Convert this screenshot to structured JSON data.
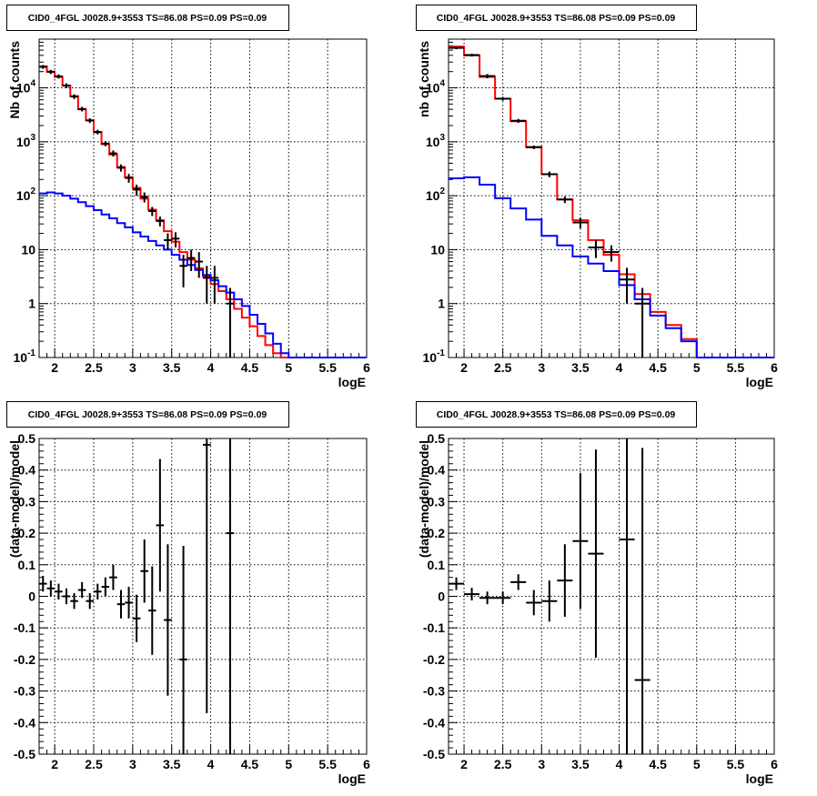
{
  "colors": {
    "data": "#000000",
    "total_model": "#ff0000",
    "component": "#0000ff",
    "grid": "#000000"
  },
  "chart_data": [
    {
      "type": "line",
      "panel": "top-left",
      "title": "CID0_4FGL J0028.9+3553 TS=86.08 PS=0.09 PS=0.09",
      "xlabel": "logE",
      "ylabel": "Nb of counts",
      "xlim": [
        1.8,
        6.0
      ],
      "ylim": [
        0.1,
        80000
      ],
      "log_y": true,
      "grid": true,
      "x_ticks": [
        2,
        2.5,
        3,
        3.5,
        4,
        4.5,
        5,
        5.5,
        6
      ],
      "x_tick_labels": [
        "2",
        "2.5",
        "3",
        "3.5",
        "4",
        "4.5",
        "5",
        "5.5",
        "6"
      ],
      "y_ticks": [
        0.1,
        1,
        10,
        100,
        1000,
        10000
      ],
      "y_tick_labels": [
        "10^-1",
        "1",
        "10",
        "10^2",
        "10^3",
        "10^4"
      ],
      "bin_edges": [
        1.8,
        1.9,
        2.0,
        2.1,
        2.2,
        2.3,
        2.4,
        2.5,
        2.6,
        2.7,
        2.8,
        2.9,
        3.0,
        3.1,
        3.2,
        3.3,
        3.4,
        3.5,
        3.6,
        3.7,
        3.8,
        3.9,
        4.0,
        4.1,
        4.2,
        4.3,
        4.4,
        4.5,
        4.6,
        4.7,
        4.8,
        4.9,
        5.0,
        5.1,
        5.2,
        5.3,
        5.4,
        5.5,
        5.6,
        5.7,
        5.8,
        5.9,
        6.0
      ],
      "series": [
        {
          "name": "",
          "role": "total_model",
          "values": [
            25000,
            20000,
            16000,
            11000,
            7000,
            4000,
            2500,
            1500,
            900,
            580,
            340,
            220,
            140,
            88,
            55,
            35,
            22,
            14,
            9,
            6.5,
            4.5,
            3.2,
            2.3,
            1.7,
            1.2,
            0.8,
            0.55,
            0.38,
            0.25,
            0.17,
            0.12,
            0.1,
            0.1,
            0.1,
            0.1,
            0.1,
            0.1,
            0.1,
            0.1,
            0.1,
            0.1,
            0.1
          ]
        },
        {
          "name": "",
          "role": "component",
          "values": [
            110,
            115,
            110,
            100,
            88,
            76,
            64,
            54,
            45,
            38,
            31,
            26,
            21,
            17.5,
            14.5,
            12,
            10,
            8,
            6.5,
            5.2,
            4.2,
            3.4,
            2.7,
            2.1,
            1.6,
            1.2,
            0.9,
            0.62,
            0.42,
            0.28,
            0.18,
            0.12,
            0.1,
            0.1,
            0.1,
            0.1,
            0.1,
            0.1,
            0.1,
            0.1,
            0.1,
            0.1
          ]
        }
      ],
      "points": [
        {
          "x": 1.85,
          "y": 24500,
          "xerr": 0.05,
          "yerr": 2000
        },
        {
          "x": 1.95,
          "y": 19800,
          "xerr": 0.05,
          "yerr": 1800
        },
        {
          "x": 2.05,
          "y": 16300,
          "xerr": 0.05,
          "yerr": 1500
        },
        {
          "x": 2.15,
          "y": 11000,
          "xerr": 0.05,
          "yerr": 1100
        },
        {
          "x": 2.25,
          "y": 6900,
          "xerr": 0.05,
          "yerr": 700
        },
        {
          "x": 2.35,
          "y": 4050,
          "xerr": 0.05,
          "yerr": 400
        },
        {
          "x": 2.45,
          "y": 2480,
          "xerr": 0.05,
          "yerr": 250
        },
        {
          "x": 2.55,
          "y": 1520,
          "xerr": 0.05,
          "yerr": 150
        },
        {
          "x": 2.65,
          "y": 925,
          "xerr": 0.05,
          "yerr": 100
        },
        {
          "x": 2.75,
          "y": 610,
          "xerr": 0.05,
          "yerr": 80
        },
        {
          "x": 2.85,
          "y": 330,
          "xerr": 0.05,
          "yerr": 50
        },
        {
          "x": 2.95,
          "y": 214,
          "xerr": 0.05,
          "yerr": 40
        },
        {
          "x": 3.05,
          "y": 130,
          "xerr": 0.05,
          "yerr": 30
        },
        {
          "x": 3.15,
          "y": 95,
          "xerr": 0.05,
          "yerr": 20
        },
        {
          "x": 3.25,
          "y": 52,
          "xerr": 0.05,
          "yerr": 10
        },
        {
          "x": 3.35,
          "y": 34,
          "xerr": 0.05,
          "yerr": 7
        },
        {
          "x": 3.45,
          "y": 15,
          "xerr": 0.05,
          "yerr": 5
        },
        {
          "x": 3.55,
          "y": 16,
          "xerr": 0.05,
          "yerr": 5
        },
        {
          "x": 3.65,
          "y": 5,
          "xerr": 0.05,
          "yerr": 3
        },
        {
          "x": 3.75,
          "y": 7,
          "xerr": 0.05,
          "yerr": 3
        },
        {
          "x": 3.85,
          "y": 6,
          "xerr": 0.05,
          "yerr": 3
        },
        {
          "x": 3.95,
          "y": 3,
          "xerr": 0.05,
          "yerr": 2
        },
        {
          "x": 4.05,
          "y": 3,
          "xerr": 0.05,
          "yerr": 2
        },
        {
          "x": 4.25,
          "y": 1,
          "xerr": 0.05,
          "yerr": 0.95
        }
      ]
    },
    {
      "type": "line",
      "panel": "top-right",
      "title": "CID0_4FGL J0028.9+3553 TS=86.08 PS=0.09 PS=0.09",
      "xlabel": "logE",
      "ylabel": "nb of counts",
      "xlim": [
        1.8,
        6.0
      ],
      "ylim": [
        0.1,
        80000
      ],
      "log_y": true,
      "grid": true,
      "x_ticks": [
        2,
        2.5,
        3,
        3.5,
        4,
        4.5,
        5,
        5.5,
        6
      ],
      "x_tick_labels": [
        "2",
        "2.5",
        "3",
        "3.5",
        "4",
        "4.5",
        "5",
        "5.5",
        "6"
      ],
      "y_ticks": [
        0.1,
        1,
        10,
        100,
        1000,
        10000
      ],
      "y_tick_labels": [
        "10^-1",
        "1",
        "10",
        "10^2",
        "10^3",
        "10^4"
      ],
      "bin_edges": [
        1.8,
        2.0,
        2.2,
        2.4,
        2.6,
        2.8,
        3.0,
        3.2,
        3.4,
        3.6,
        3.8,
        4.0,
        4.2,
        4.4,
        4.6,
        4.8,
        5.0,
        5.2,
        5.4,
        5.6,
        5.8,
        6.0
      ],
      "series": [
        {
          "name": "",
          "role": "total_model",
          "values": [
            58000,
            40000,
            16000,
            6300,
            2400,
            800,
            250,
            85,
            35,
            15,
            8,
            3.5,
            1.5,
            0.7,
            0.4,
            0.22,
            0.1,
            0.1,
            0.1,
            0.1,
            0.1
          ]
        },
        {
          "name": "",
          "role": "component",
          "values": [
            210,
            220,
            160,
            90,
            58,
            36,
            18,
            12,
            7.5,
            5.5,
            4,
            2.2,
            1.2,
            0.6,
            0.35,
            0.2,
            0.1,
            0.1,
            0.1,
            0.1,
            0.1
          ]
        }
      ],
      "points": [
        {
          "x": 1.9,
          "y": 55000,
          "xerr": 0.1,
          "yerr": 3000
        },
        {
          "x": 2.1,
          "y": 40500,
          "xerr": 0.1,
          "yerr": 2500
        },
        {
          "x": 2.3,
          "y": 16500,
          "xerr": 0.1,
          "yerr": 1500
        },
        {
          "x": 2.5,
          "y": 6300,
          "xerr": 0.1,
          "yerr": 500
        },
        {
          "x": 2.7,
          "y": 2450,
          "xerr": 0.1,
          "yerr": 200
        },
        {
          "x": 2.9,
          "y": 790,
          "xerr": 0.1,
          "yerr": 60
        },
        {
          "x": 3.1,
          "y": 250,
          "xerr": 0.1,
          "yerr": 30
        },
        {
          "x": 3.3,
          "y": 85,
          "xerr": 0.1,
          "yerr": 12
        },
        {
          "x": 3.5,
          "y": 32,
          "xerr": 0.1,
          "yerr": 7
        },
        {
          "x": 3.7,
          "y": 11,
          "xerr": 0.1,
          "yerr": 4
        },
        {
          "x": 3.9,
          "y": 9,
          "xerr": 0.1,
          "yerr": 3
        },
        {
          "x": 4.1,
          "y": 2.8,
          "xerr": 0.1,
          "yerr": 1.8
        },
        {
          "x": 4.3,
          "y": 1,
          "xerr": 0.1,
          "yerr": 0.95
        }
      ]
    },
    {
      "type": "scatter",
      "panel": "bottom-left",
      "title": "CID0_4FGL J0028.9+3553 TS=86.08 PS=0.09 PS=0.09",
      "xlabel": "logE",
      "ylabel": "(data-model)/model",
      "xlim": [
        1.8,
        6.0
      ],
      "ylim": [
        -0.5,
        0.5
      ],
      "log_y": false,
      "grid": true,
      "x_ticks": [
        2,
        2.5,
        3,
        3.5,
        4,
        4.5,
        5,
        5.5,
        6
      ],
      "x_tick_labels": [
        "2",
        "2.5",
        "3",
        "3.5",
        "4",
        "4.5",
        "5",
        "5.5",
        "6"
      ],
      "y_ticks": [
        -0.5,
        -0.4,
        -0.3,
        -0.2,
        -0.1,
        0,
        0.1,
        0.2,
        0.3,
        0.4,
        0.5
      ],
      "y_tick_labels": [
        "-0.5",
        "-0.4",
        "-0.3",
        "-0.2",
        "-0.1",
        "0",
        "0.1",
        "0.2",
        "0.3",
        "0.4",
        "0.5"
      ],
      "points": [
        {
          "x": 1.85,
          "y": 0.04,
          "xerr": 0.05,
          "yerr": 0.025
        },
        {
          "x": 1.95,
          "y": 0.025,
          "xerr": 0.05,
          "yerr": 0.025
        },
        {
          "x": 2.05,
          "y": 0.015,
          "xerr": 0.05,
          "yerr": 0.025
        },
        {
          "x": 2.15,
          "y": 0.0,
          "xerr": 0.05,
          "yerr": 0.025
        },
        {
          "x": 2.25,
          "y": -0.015,
          "xerr": 0.05,
          "yerr": 0.025
        },
        {
          "x": 2.35,
          "y": 0.02,
          "xerr": 0.05,
          "yerr": 0.025
        },
        {
          "x": 2.45,
          "y": -0.015,
          "xerr": 0.05,
          "yerr": 0.025
        },
        {
          "x": 2.55,
          "y": 0.015,
          "xerr": 0.05,
          "yerr": 0.025
        },
        {
          "x": 2.65,
          "y": 0.03,
          "xerr": 0.05,
          "yerr": 0.03
        },
        {
          "x": 2.75,
          "y": 0.06,
          "xerr": 0.05,
          "yerr": 0.04
        },
        {
          "x": 2.85,
          "y": -0.025,
          "xerr": 0.05,
          "yerr": 0.045
        },
        {
          "x": 2.95,
          "y": -0.02,
          "xerr": 0.05,
          "yerr": 0.05
        },
        {
          "x": 3.05,
          "y": -0.07,
          "xerr": 0.05,
          "yerr": 0.075
        },
        {
          "x": 3.15,
          "y": 0.08,
          "xerr": 0.05,
          "yerr": 0.1
        },
        {
          "x": 3.25,
          "y": -0.045,
          "xerr": 0.05,
          "yerr": 0.14
        },
        {
          "x": 3.35,
          "y": 0.225,
          "xerr": 0.05,
          "yerr": 0.21
        },
        {
          "x": 3.45,
          "y": -0.075,
          "xerr": 0.05,
          "yerr": 0.24
        },
        {
          "x": 3.65,
          "y": -0.2,
          "xerr": 0.05,
          "yerr": 0.36
        },
        {
          "x": 3.95,
          "y": 0.48,
          "xerr": 0.05,
          "yerr": 0.85
        },
        {
          "x": 4.25,
          "y": 0.2,
          "xerr": 0.05,
          "yerr": 1.0
        }
      ]
    },
    {
      "type": "scatter",
      "panel": "bottom-right",
      "title": "CID0_4FGL J0028.9+3553 TS=86.08 PS=0.09 PS=0.09",
      "xlabel": "logE",
      "ylabel": "(data-model)/model",
      "xlim": [
        1.8,
        6.0
      ],
      "ylim": [
        -0.5,
        0.5
      ],
      "log_y": false,
      "grid": true,
      "x_ticks": [
        2,
        2.5,
        3,
        3.5,
        4,
        4.5,
        5,
        5.5,
        6
      ],
      "x_tick_labels": [
        "2",
        "2.5",
        "3",
        "3.5",
        "4",
        "4.5",
        "5",
        "5.5",
        "6"
      ],
      "y_ticks": [
        -0.5,
        -0.4,
        -0.3,
        -0.2,
        -0.1,
        0,
        0.1,
        0.2,
        0.3,
        0.4,
        0.5
      ],
      "y_tick_labels": [
        "-0.5",
        "-0.4",
        "-0.3",
        "-0.2",
        "-0.1",
        "0",
        "0.1",
        "0.2",
        "0.3",
        "0.4",
        "0.5"
      ],
      "points": [
        {
          "x": 1.9,
          "y": 0.04,
          "xerr": 0.1,
          "yerr": 0.02
        },
        {
          "x": 2.1,
          "y": 0.007,
          "xerr": 0.1,
          "yerr": 0.02
        },
        {
          "x": 2.3,
          "y": -0.005,
          "xerr": 0.1,
          "yerr": 0.02
        },
        {
          "x": 2.5,
          "y": -0.005,
          "xerr": 0.1,
          "yerr": 0.02
        },
        {
          "x": 2.7,
          "y": 0.045,
          "xerr": 0.1,
          "yerr": 0.025
        },
        {
          "x": 2.9,
          "y": -0.02,
          "xerr": 0.1,
          "yerr": 0.04
        },
        {
          "x": 3.1,
          "y": -0.015,
          "xerr": 0.1,
          "yerr": 0.065
        },
        {
          "x": 3.3,
          "y": 0.05,
          "xerr": 0.1,
          "yerr": 0.115
        },
        {
          "x": 3.5,
          "y": 0.175,
          "xerr": 0.1,
          "yerr": 0.215
        },
        {
          "x": 3.7,
          "y": 0.135,
          "xerr": 0.1,
          "yerr": 0.33
        },
        {
          "x": 4.1,
          "y": 0.18,
          "xerr": 0.1,
          "yerr": 0.7
        },
        {
          "x": 4.3,
          "y": -0.265,
          "xerr": 0.1,
          "yerr": 0.735
        }
      ]
    }
  ]
}
